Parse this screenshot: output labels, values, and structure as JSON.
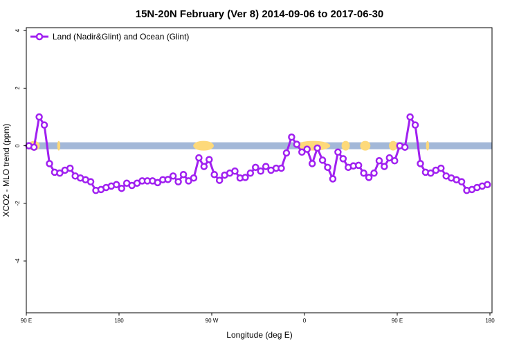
{
  "chart_data": {
    "type": "line",
    "title": "15N-20N February (Ver 8)   2014-09-06 to 2017-06-30",
    "xlabel": "Longitude (deg E)",
    "ylabel": "XCO2 - MLO trend (ppm)",
    "xlim": [
      90,
      450
    ],
    "ylim": [
      -5.8,
      4.1
    ],
    "x_ticks": [
      {
        "value": 90,
        "label": "90 E"
      },
      {
        "value": 180,
        "label": "180"
      },
      {
        "value": 270,
        "label": "90 W"
      },
      {
        "value": 360,
        "label": "0"
      },
      {
        "value": 450,
        "label": "90 E"
      },
      {
        "value": 540,
        "label": "180"
      }
    ],
    "y_ticks": [
      {
        "value": -4,
        "label": "-4"
      },
      {
        "value": -2,
        "label": "-2"
      },
      {
        "value": 0,
        "label": "0"
      },
      {
        "value": 2,
        "label": "2"
      },
      {
        "value": 4,
        "label": "4"
      }
    ],
    "grid": false,
    "legend_position": "top-left",
    "series": [
      {
        "name": "Land (Nadir&Glint) and Ocean (Glint)",
        "color": "#a020f0",
        "x": [
          92.5,
          97.5,
          102.5,
          107.5,
          112.5,
          117.5,
          122.5,
          127.5,
          132.5,
          137.5,
          142.5,
          147.5,
          152.5,
          157.5,
          162.5,
          167.5,
          172.5,
          177.5,
          182.5,
          187.5,
          192.5,
          197.5,
          202.5,
          207.5,
          212.5,
          217.5,
          222.5,
          227.5,
          232.5,
          237.5,
          242.5,
          247.5,
          252.5,
          257.5,
          262.5,
          267.5,
          272.5,
          277.5,
          282.5,
          287.5,
          292.5,
          297.5,
          302.5,
          307.5,
          312.5,
          317.5,
          322.5,
          327.5,
          332.5,
          337.5,
          342.5,
          347.5,
          352.5,
          357.5,
          362.5,
          367.5,
          372.5,
          377.5,
          382.5,
          387.5,
          392.5,
          397.5,
          402.5,
          407.5,
          412.5,
          417.5,
          422.5,
          427.5,
          432.5,
          437.5,
          442.5,
          447.5
        ],
        "y": [
          0.0,
          -0.05,
          1.0,
          0.72,
          -0.62,
          -0.92,
          -0.95,
          -0.85,
          -0.78,
          -1.05,
          -1.12,
          -1.18,
          -1.25,
          -1.55,
          -1.52,
          -1.45,
          -1.4,
          -1.35,
          -1.48,
          -1.3,
          -1.38,
          -1.3,
          -1.22,
          -1.22,
          -1.22,
          -1.28,
          -1.18,
          -1.17,
          -1.05,
          -1.25,
          -1.0,
          -1.22,
          -1.12,
          -0.42,
          -0.72,
          -0.48,
          -1.0,
          -1.2,
          -1.02,
          -0.95,
          -0.88,
          -1.12,
          -1.1,
          -0.95,
          -0.75,
          -0.88,
          -0.72,
          -0.85,
          -0.78,
          -0.78,
          -0.25,
          0.3,
          0.05,
          -0.22,
          -0.12,
          -0.62,
          -0.08,
          -0.5,
          -0.75,
          -1.15,
          -0.22,
          -0.45,
          -0.75,
          -0.7,
          -0.68,
          -0.95,
          -1.1,
          -0.95,
          -0.52,
          -0.72,
          -0.42,
          -0.52
        ],
        "x_repeat": [
          452.5,
          457.5,
          462.5,
          467.5,
          472.5,
          477.5,
          482.5,
          487.5,
          492.5,
          497.5,
          502.5,
          507.5,
          512.5,
          517.5,
          522.5,
          527.5,
          532.5,
          537.5
        ],
        "y_repeat": [
          0.0,
          -0.05,
          1.0,
          0.72,
          -0.62,
          -0.92,
          -0.95,
          -0.85,
          -0.78,
          -1.05,
          -1.12,
          -1.18,
          -1.25,
          -1.55,
          -1.52,
          -1.45,
          -1.4,
          -1.35
        ]
      }
    ],
    "background_band": {
      "y_min": -0.12,
      "y_max": 0.12,
      "color": "#a3b8d8"
    },
    "land_mask_color": "#fdd97a",
    "land_blobs": [
      {
        "x0": 92,
        "x1": 103,
        "y": 0.0
      },
      {
        "x0": 120,
        "x1": 123,
        "y": 0.0
      },
      {
        "x0": 252,
        "x1": 272,
        "y": 0.0
      },
      {
        "x0": 352,
        "x1": 385,
        "y": 0.0
      },
      {
        "x0": 396,
        "x1": 404,
        "y": 0.0
      },
      {
        "x0": 414,
        "x1": 424,
        "y": 0.0
      },
      {
        "x0": 442,
        "x1": 450,
        "y": 0.0
      },
      {
        "x0": 478,
        "x1": 481,
        "y": 0.0
      }
    ]
  }
}
